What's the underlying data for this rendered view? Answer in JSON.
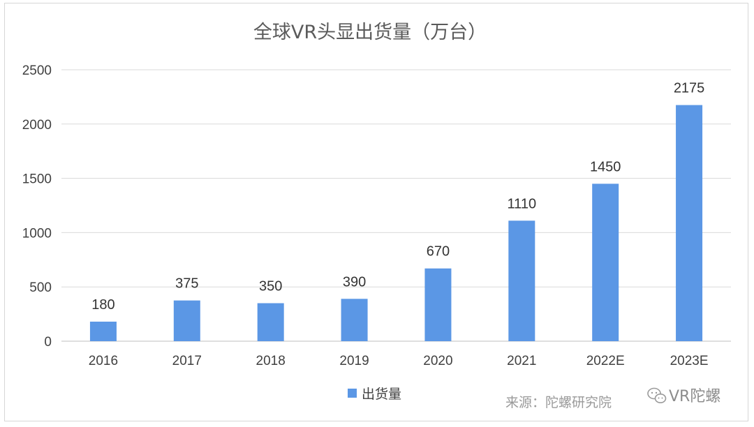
{
  "chart_data": {
    "type": "bar",
    "title": "全球VR头显出货量（万台）",
    "categories": [
      "2016",
      "2017",
      "2018",
      "2019",
      "2020",
      "2021",
      "2022E",
      "2023E"
    ],
    "series": [
      {
        "name": "出货量",
        "values": [
          180,
          375,
          350,
          390,
          670,
          1110,
          1450,
          2175
        ],
        "color": "#5b97e5"
      }
    ],
    "ylim": [
      0,
      2500
    ],
    "yticks": [
      0,
      500,
      1000,
      1500,
      2000,
      2500
    ],
    "grid": true,
    "legend": "bottom",
    "data_labels": [
      "180",
      "375",
      "350",
      "390",
      "670",
      "1110",
      "1450",
      "2175"
    ]
  },
  "source": "来源：陀螺研究院",
  "watermark": {
    "text": "VR陀螺",
    "icon": "wechat-icon"
  },
  "colors": {
    "bar": "#5b97e5",
    "grid": "#d9d9d9",
    "axis": "#bfbfbf",
    "text": "#404040"
  }
}
